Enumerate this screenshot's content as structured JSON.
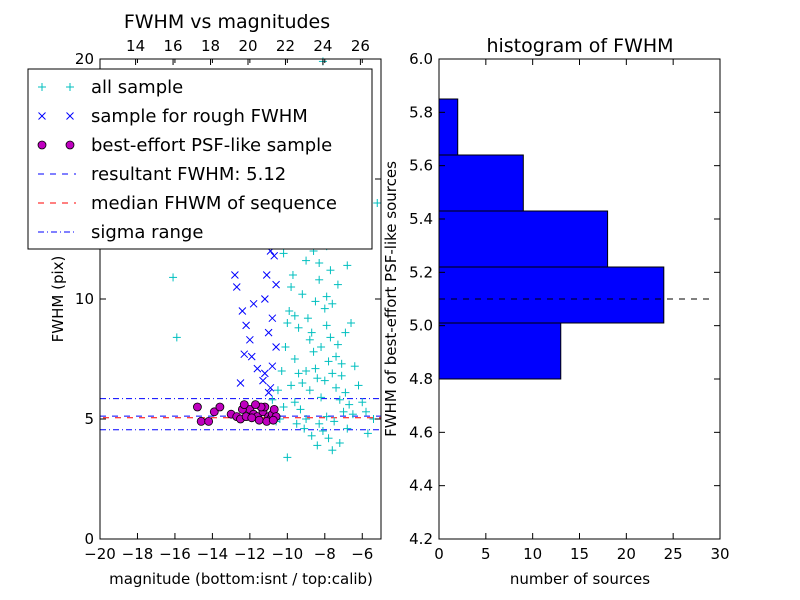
{
  "colors": {
    "all_sample": "#00bfbf",
    "rough_sample": "#0000ff",
    "psf_sample": "#bf00bf",
    "resultant_line": "#0000ff",
    "median_line": "#ff0000",
    "sigma_line": "#0000ff",
    "hist_bar": "#0000ff",
    "hist_median": "#000000"
  },
  "chart_data": [
    {
      "type": "scatter",
      "title": "FWHM vs magnitudes",
      "xlabel": "magnitude (bottom:isnt / top:calib)",
      "ylabel": "FWHM (pix)",
      "xlim": [
        -20,
        -5
      ],
      "ylim": [
        0,
        20
      ],
      "xticks": [
        "−20",
        "−18",
        "−16",
        "−14",
        "−12",
        "−10",
        "−8",
        "−6"
      ],
      "yticks": [
        "0",
        "5",
        "10",
        "15",
        "20"
      ],
      "top_axis": {
        "xlim": [
          12.1,
          27.1
        ],
        "ticks": [
          "14",
          "16",
          "18",
          "20",
          "22",
          "24",
          "26"
        ]
      },
      "grid": false,
      "legend": {
        "placement": "top-left",
        "entries": [
          {
            "label": "all sample",
            "marker": "+",
            "color": "#00bfbf"
          },
          {
            "label": "sample for rough FWHM",
            "marker": "x",
            "color": "#0000ff"
          },
          {
            "label": "best-effort PSF-like sample",
            "marker": "o",
            "color": "#bf00bf"
          },
          {
            "label": "resultant FWHM: 5.12",
            "marker": "dashed",
            "color": "#0000ff"
          },
          {
            "label": "median FHWM of sequence",
            "marker": "dashed",
            "color": "#ff0000"
          },
          {
            "label": "sigma range",
            "marker": "dashdot",
            "color": "#0000ff"
          }
        ]
      },
      "hlines": {
        "resultant": 5.12,
        "median": 5.05,
        "sigma_low": 4.55,
        "sigma_high": 5.85
      },
      "series": [
        {
          "name": "all sample",
          "marker": "+",
          "points": [
            [
              -16.1,
              10.9
            ],
            [
              -15.9,
              8.4
            ],
            [
              -10.0,
              3.4
            ],
            [
              -10.5,
              6.2
            ],
            [
              -10.3,
              7.0
            ],
            [
              -10.1,
              8.0
            ],
            [
              -9.9,
              9.5
            ],
            [
              -9.7,
              11.0
            ],
            [
              -9.5,
              12.5
            ],
            [
              -9.3,
              13.5
            ],
            [
              -9.6,
              7.5
            ],
            [
              -9.4,
              8.8
            ],
            [
              -9.2,
              10.2
            ],
            [
              -9.0,
              11.6
            ],
            [
              -8.8,
              13.0
            ],
            [
              -8.6,
              14.0
            ],
            [
              -8.4,
              15.5
            ],
            [
              -8.2,
              16.8
            ],
            [
              -8.0,
              17.8
            ],
            [
              -7.8,
              19.4
            ],
            [
              -8.1,
              19.9
            ],
            [
              -8.6,
              12.0
            ],
            [
              -8.3,
              10.8
            ],
            [
              -8.0,
              9.6
            ],
            [
              -7.7,
              8.4
            ],
            [
              -7.4,
              7.6
            ],
            [
              -7.1,
              6.8
            ],
            [
              -6.9,
              6.1
            ],
            [
              -6.7,
              5.6
            ],
            [
              -6.5,
              5.2
            ],
            [
              -7.5,
              4.9
            ],
            [
              -7.8,
              4.2
            ],
            [
              -8.1,
              4.5
            ],
            [
              -8.4,
              3.9
            ],
            [
              -7.6,
              3.7
            ],
            [
              -7.2,
              4.0
            ],
            [
              -6.8,
              4.6
            ],
            [
              -9.0,
              5.0
            ],
            [
              -9.3,
              5.4
            ],
            [
              -9.6,
              5.7
            ],
            [
              -9.8,
              6.4
            ],
            [
              -10.2,
              5.5
            ],
            [
              -10.4,
              5.0
            ],
            [
              -8.8,
              6.2
            ],
            [
              -8.5,
              7.1
            ],
            [
              -8.2,
              8.0
            ],
            [
              -7.9,
              8.9
            ],
            [
              -7.6,
              9.8
            ],
            [
              -7.3,
              10.6
            ],
            [
              -7.9,
              12.2
            ],
            [
              -8.2,
              13.4
            ],
            [
              -8.5,
              14.6
            ],
            [
              -8.8,
              15.7
            ],
            [
              -9.1,
              14.8
            ],
            [
              -9.4,
              13.9
            ],
            [
              -9.8,
              12.8
            ],
            [
              -10.0,
              13.8
            ],
            [
              -8.9,
              9.2
            ],
            [
              -8.7,
              8.6
            ],
            [
              -8.5,
              9.9
            ],
            [
              -8.3,
              11.5
            ],
            [
              -8.1,
              12.7
            ],
            [
              -7.9,
              10.1
            ],
            [
              -7.7,
              11.2
            ],
            [
              -7.5,
              12.6
            ],
            [
              -7.3,
              8.1
            ],
            [
              -7.1,
              7.3
            ],
            [
              -6.9,
              8.6
            ],
            [
              -7.0,
              5.3
            ],
            [
              -7.2,
              5.8
            ],
            [
              -7.4,
              6.3
            ],
            [
              -7.6,
              6.9
            ],
            [
              -7.8,
              7.4
            ],
            [
              -8.0,
              6.6
            ],
            [
              -8.2,
              5.9
            ],
            [
              -8.4,
              6.7
            ],
            [
              -8.6,
              7.8
            ],
            [
              -8.8,
              8.3
            ],
            [
              -9.0,
              7.0
            ],
            [
              -9.2,
              6.5
            ],
            [
              -9.4,
              6.9
            ],
            [
              -9.6,
              9.3
            ],
            [
              -9.8,
              10.5
            ],
            [
              -10.0,
              9.0
            ],
            [
              -10.2,
              11.9
            ],
            [
              -10.4,
              12.6
            ],
            [
              -10.6,
              13.3
            ],
            [
              -8.4,
              17.5
            ],
            [
              -8.0,
              16.0
            ],
            [
              -7.6,
              15.1
            ],
            [
              -7.2,
              13.6
            ],
            [
              -6.8,
              11.4
            ],
            [
              -6.6,
              9.0
            ],
            [
              -6.4,
              7.2
            ],
            [
              -6.2,
              6.4
            ],
            [
              -6.0,
              5.7
            ],
            [
              -5.8,
              5.3
            ],
            [
              -9.5,
              4.8
            ],
            [
              -9.1,
              4.6
            ],
            [
              -8.7,
              4.3
            ],
            [
              -8.3,
              4.8
            ],
            [
              -7.9,
              5.1
            ],
            [
              -10.6,
              4.9
            ],
            [
              -10.8,
              5.8
            ],
            [
              -9.9,
              15.6
            ],
            [
              -9.3,
              16.4
            ],
            [
              -8.7,
              17.1
            ],
            [
              -5.2,
              14.0
            ],
            [
              -5.4,
              5.0
            ],
            [
              -5.7,
              4.4
            ]
          ]
        },
        {
          "name": "sample for rough FWHM",
          "marker": "x",
          "points": [
            [
              -12.8,
              11.0
            ],
            [
              -12.7,
              10.5
            ],
            [
              -12.4,
              9.5
            ],
            [
              -12.2,
              8.9
            ],
            [
              -12.0,
              8.3
            ],
            [
              -11.9,
              7.6
            ],
            [
              -11.6,
              7.1
            ],
            [
              -11.3,
              6.6
            ],
            [
              -11.0,
              6.1
            ],
            [
              -12.5,
              6.5
            ],
            [
              -11.2,
              10.0
            ],
            [
              -11.1,
              11.0
            ],
            [
              -10.9,
              12.0
            ],
            [
              -10.8,
              13.0
            ],
            [
              -10.7,
              11.8
            ],
            [
              -10.6,
              10.6
            ],
            [
              -10.8,
              9.2
            ],
            [
              -11.0,
              8.6
            ],
            [
              -10.6,
              8.0
            ],
            [
              -10.8,
              7.2
            ],
            [
              -11.2,
              6.9
            ],
            [
              -12.0,
              13.4
            ],
            [
              -11.5,
              12.6
            ],
            [
              -10.9,
              6.3
            ],
            [
              -12.3,
              7.7
            ],
            [
              -11.8,
              9.8
            ],
            [
              -10.5,
              12.4
            ]
          ]
        },
        {
          "name": "best-effort PSF-like sample",
          "marker": "o",
          "points": [
            [
              -14.8,
              5.5
            ],
            [
              -14.6,
              4.9
            ],
            [
              -14.2,
              4.9
            ],
            [
              -13.9,
              5.3
            ],
            [
              -13.6,
              5.5
            ],
            [
              -13.0,
              5.2
            ],
            [
              -12.7,
              5.1
            ],
            [
              -12.5,
              5.0
            ],
            [
              -12.2,
              5.1
            ],
            [
              -12.0,
              5.4
            ],
            [
              -11.8,
              5.2
            ],
            [
              -11.6,
              5.1
            ],
            [
              -11.5,
              4.95
            ],
            [
              -11.3,
              5.3
            ],
            [
              -11.2,
              5.5
            ],
            [
              -11.0,
              5.1
            ],
            [
              -10.9,
              5.0
            ],
            [
              -10.8,
              5.2
            ],
            [
              -10.7,
              5.4
            ],
            [
              -10.6,
              5.1
            ],
            [
              -12.4,
              5.4
            ],
            [
              -11.9,
              5.05
            ],
            [
              -11.4,
              5.5
            ],
            [
              -11.1,
              4.9
            ],
            [
              -10.75,
              4.95
            ],
            [
              -12.3,
              5.6
            ],
            [
              -11.7,
              5.6
            ]
          ]
        }
      ]
    },
    {
      "type": "bar",
      "orientation": "horizontal",
      "title": "histogram of FWHM",
      "xlabel": "number of sources",
      "ylabel": "FWHM of best-effort PSF-like sources",
      "xlim": [
        0,
        30
      ],
      "ylim": [
        4.2,
        6.0
      ],
      "xticks": [
        "0",
        "5",
        "10",
        "15",
        "20",
        "25",
        "30"
      ],
      "yticks": [
        "4.2",
        "4.4",
        "4.6",
        "4.8",
        "5.0",
        "5.2",
        "5.4",
        "5.6",
        "5.8",
        "6.0"
      ],
      "grid": false,
      "bins": [
        {
          "from": 4.8,
          "to": 5.01,
          "count": 13
        },
        {
          "from": 5.01,
          "to": 5.22,
          "count": 24
        },
        {
          "from": 5.22,
          "to": 5.43,
          "count": 18
        },
        {
          "from": 5.43,
          "to": 5.64,
          "count": 9
        },
        {
          "from": 5.64,
          "to": 5.85,
          "count": 2
        }
      ],
      "median_line": {
        "y": 5.1,
        "x_to": 29
      }
    }
  ]
}
